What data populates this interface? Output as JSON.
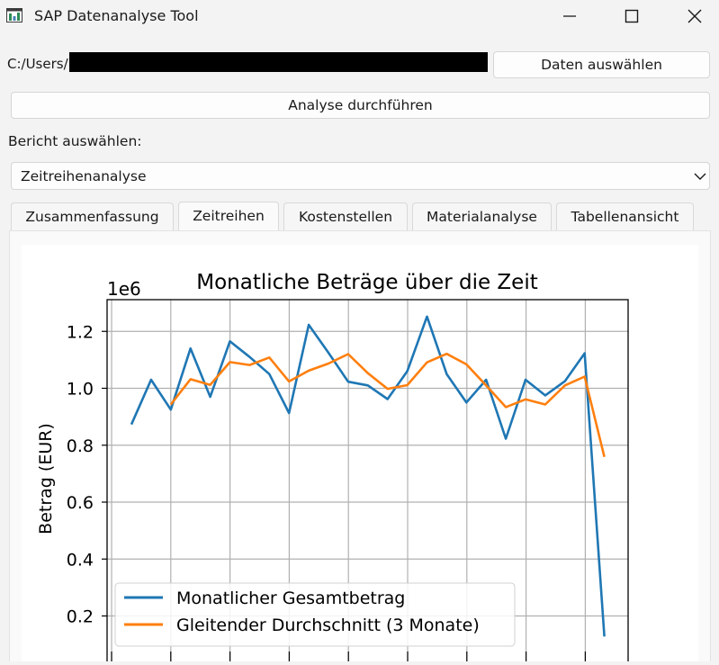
{
  "window": {
    "title": "SAP Datenanalyse Tool",
    "icon": "app-icon",
    "controls": [
      "minimize-icon",
      "maximize-icon",
      "close-icon"
    ]
  },
  "file": {
    "path_prefix": "C:/Users/",
    "load_button": "Daten auswählen"
  },
  "analyze_button": "Analyse durchführen",
  "report": {
    "label": "Bericht auswählen:",
    "selected": "Zeitreihenanalyse"
  },
  "tabs": [
    {
      "label": "Zusammenfassung",
      "active": false
    },
    {
      "label": "Zeitreihen",
      "active": true
    },
    {
      "label": "Kostenstellen",
      "active": false
    },
    {
      "label": "Materialanalyse",
      "active": false
    },
    {
      "label": "Tabellenansicht",
      "active": false
    }
  ],
  "colors": {
    "series_total": "#1f77b4",
    "series_moving_avg": "#ff7f0e",
    "grid": "#b0b0b0"
  },
  "chart_data": {
    "type": "line",
    "title": "Monatliche Beträge über die Zeit",
    "ylabel": "Betrag (EUR)",
    "y_scale_label": "1e6",
    "ylim": [
      0.08,
      1.32
    ],
    "yticks": [
      0.2,
      0.4,
      0.6,
      0.8,
      1.0,
      1.2
    ],
    "ytick_labels": [
      "0.2",
      "0.4",
      "0.6",
      "0.8",
      "1.0",
      "1.2"
    ],
    "grid": true,
    "legend": "lower-left",
    "x_index": [
      0,
      1,
      2,
      3,
      4,
      5,
      6,
      7,
      8,
      9,
      10,
      11,
      12,
      13,
      14,
      15,
      16,
      17,
      18,
      19,
      20,
      21,
      22,
      23,
      24
    ],
    "series": [
      {
        "name": "Monatlicher Gesamtbetrag",
        "values": [
          0.873,
          1.03,
          0.925,
          1.14,
          0.97,
          1.165,
          1.11,
          1.05,
          0.913,
          1.223,
          1.125,
          1.023,
          1.01,
          0.962,
          1.06,
          1.252,
          1.05,
          0.95,
          1.03,
          0.823,
          1.03,
          0.975,
          1.025,
          1.123,
          0.128
        ]
      },
      {
        "name": "Gleitender Durchschnitt (3 Monate)",
        "values": [
          null,
          null,
          0.943,
          1.032,
          1.012,
          1.092,
          1.082,
          1.108,
          1.024,
          1.062,
          1.087,
          1.12,
          1.053,
          0.998,
          1.011,
          1.091,
          1.121,
          1.084,
          1.01,
          0.934,
          0.961,
          0.943,
          1.01,
          1.041,
          0.759
        ]
      }
    ]
  }
}
